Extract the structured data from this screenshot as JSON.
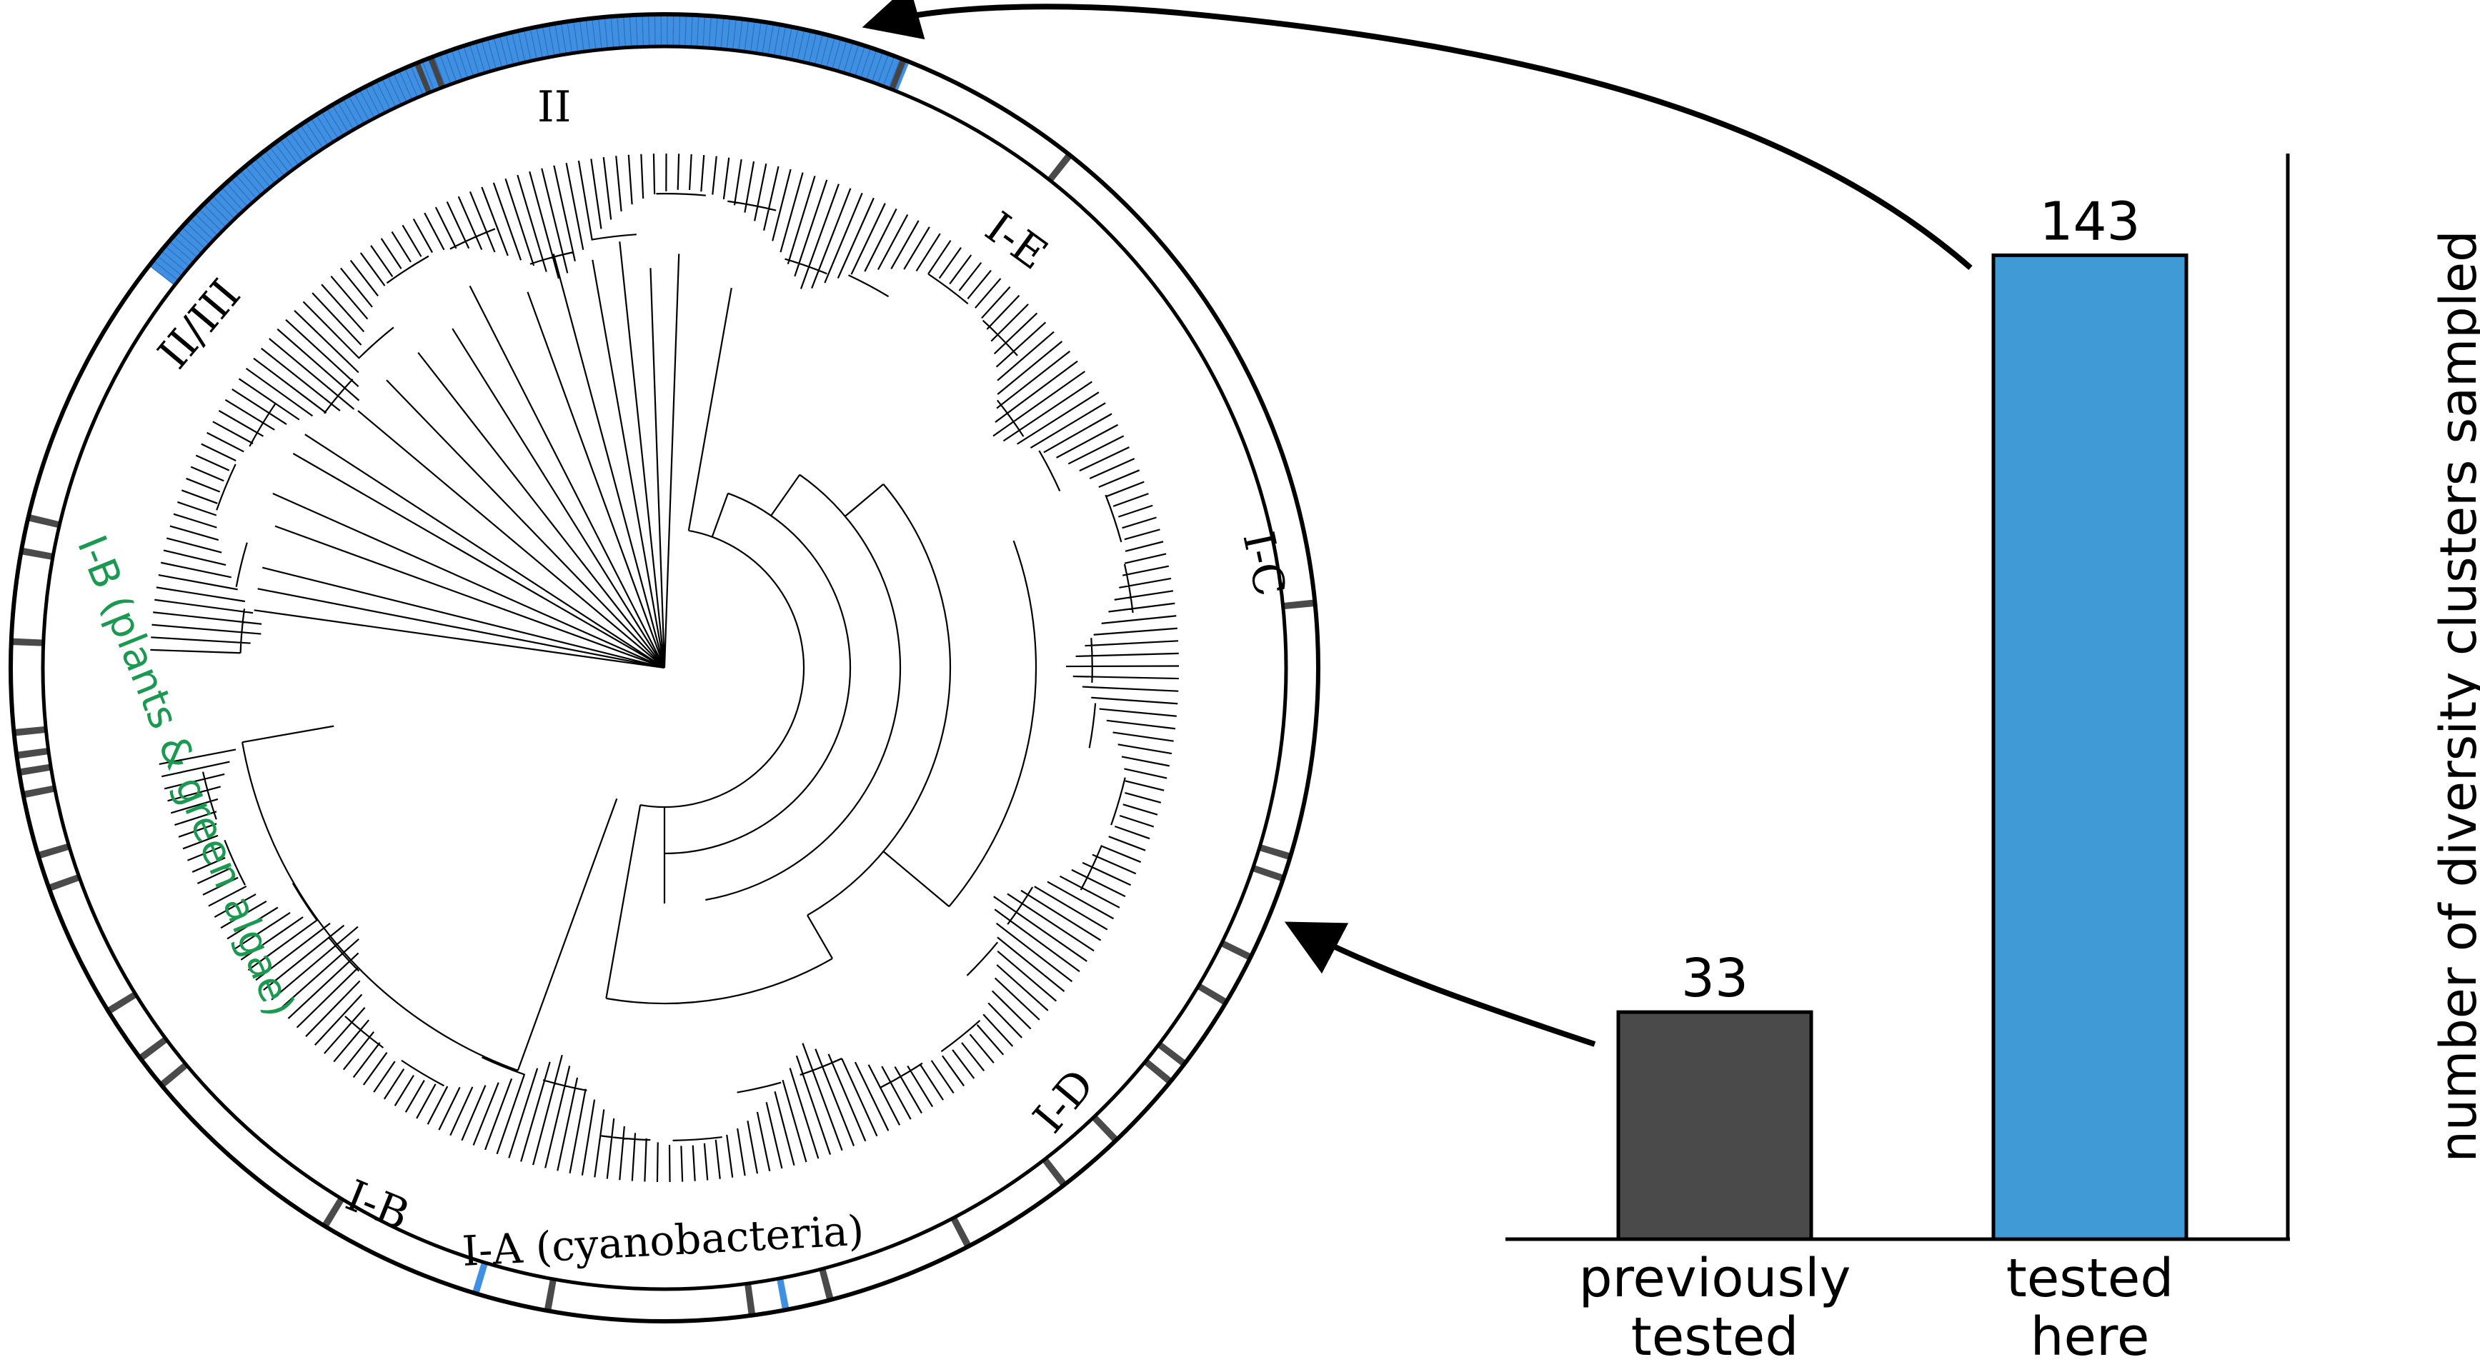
{
  "tree_panel": {
    "clade_labels": [
      "II",
      "II/III",
      "I-E",
      "I-C",
      "I-D",
      "I-A (cyanobacteria)",
      "I-B",
      "I-B (plants & green algae)"
    ],
    "ring_colors": {
      "tested_here": "#3f8fe3",
      "previously_tested": "#4a4a4a",
      "outline": "#000000"
    }
  },
  "chart_data": {
    "type": "bar",
    "categories": [
      "previously\ntested",
      "tested\nhere"
    ],
    "category_lines": [
      [
        "previously",
        "tested"
      ],
      [
        "tested",
        "here"
      ]
    ],
    "values": [
      33,
      143
    ],
    "data_labels": [
      "33",
      "143"
    ],
    "colors": [
      "#4a4a4a",
      "#3f9ad6"
    ],
    "title": "",
    "xlabel": "",
    "ylabel": "number of diversity clusters sampled",
    "ylim": [
      0,
      150
    ],
    "grid": false,
    "legend": false
  }
}
